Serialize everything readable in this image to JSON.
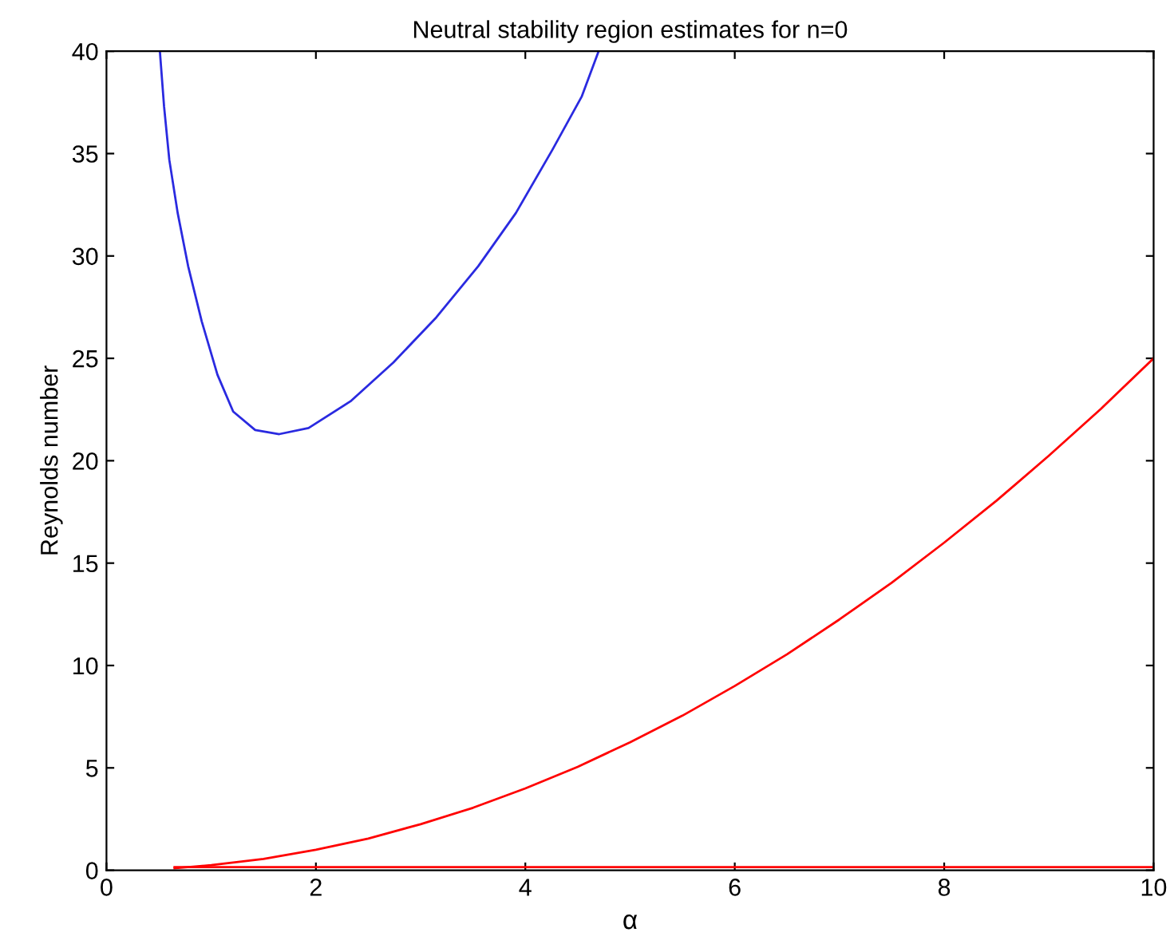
{
  "chart_data": {
    "type": "line",
    "title": "Neutral stability region estimates for n=0",
    "xlabel": "α",
    "ylabel": "Reynolds number",
    "xlim": [
      0,
      10
    ],
    "ylim": [
      0,
      40
    ],
    "xticks": [
      0,
      2,
      4,
      6,
      8,
      10
    ],
    "yticks": [
      0,
      5,
      10,
      15,
      20,
      25,
      30,
      35,
      40
    ],
    "grid": false,
    "marker": "none",
    "line_style": "solid",
    "series": [
      {
        "color": "#2a2ae0",
        "x": [
          0.51,
          0.55,
          0.6,
          0.68,
          0.78,
          0.91,
          1.06,
          1.21,
          1.42,
          1.65,
          1.93,
          2.33,
          2.74,
          3.15,
          3.55,
          3.91,
          4.26,
          4.54,
          4.7
        ],
        "values": [
          40,
          37.3,
          34.7,
          32.1,
          29.5,
          26.8,
          24.2,
          22.4,
          21.5,
          21.3,
          21.6,
          22.9,
          24.8,
          27.0,
          29.5,
          32.1,
          35.2,
          37.8,
          40
        ]
      },
      {
        "color": "#ff0000",
        "x": [
          0.65,
          1,
          1.5,
          2,
          2.5,
          3,
          3.5,
          4,
          4.5,
          5,
          5.5,
          6,
          6.5,
          7,
          7.5,
          8,
          8.5,
          9,
          9.5,
          10
        ],
        "values": [
          0.1,
          0.25,
          0.55,
          1.0,
          1.55,
          2.25,
          3.05,
          4.0,
          5.05,
          6.25,
          7.55,
          9.0,
          10.55,
          12.25,
          14.05,
          16.0,
          18.05,
          20.25,
          22.55,
          25
        ]
      },
      {
        "color": "#ff0000",
        "x": [
          0.65,
          10
        ],
        "values": [
          0.15,
          0.15
        ]
      }
    ]
  }
}
